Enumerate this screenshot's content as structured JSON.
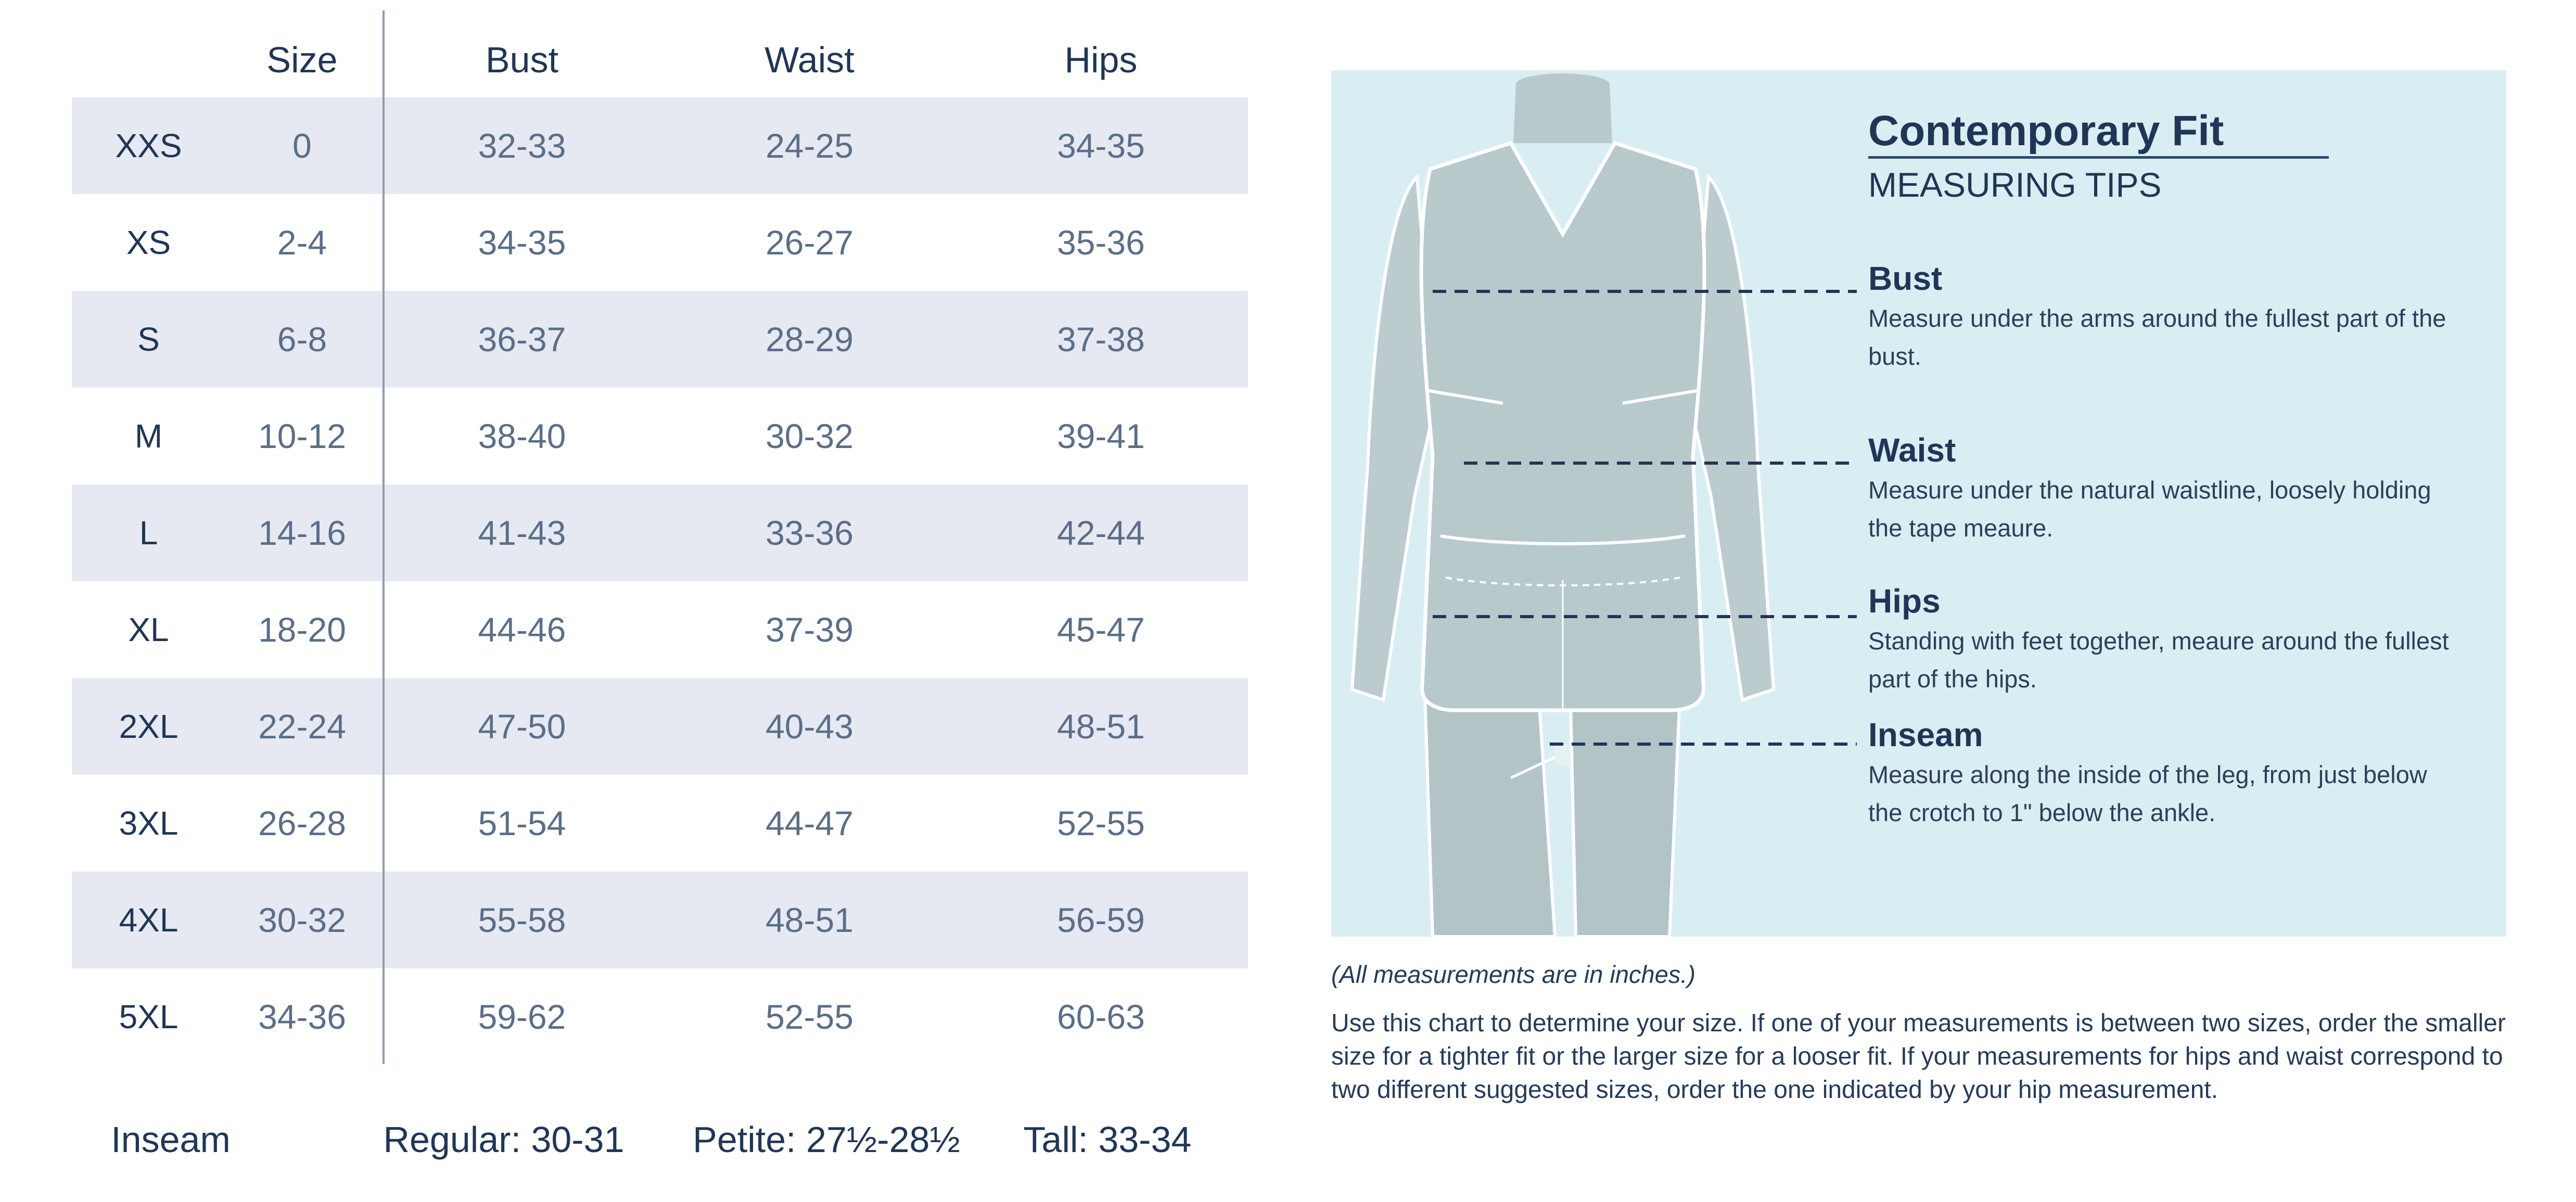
{
  "table": {
    "headers": {
      "size": "Size",
      "bust": "Bust",
      "waist": "Waist",
      "hips": "Hips"
    },
    "rows": [
      {
        "label": "XXS",
        "size": "0",
        "bust": "32-33",
        "waist": "24-25",
        "hips": "34-35"
      },
      {
        "label": "XS",
        "size": "2-4",
        "bust": "34-35",
        "waist": "26-27",
        "hips": "35-36"
      },
      {
        "label": "S",
        "size": "6-8",
        "bust": "36-37",
        "waist": "28-29",
        "hips": "37-38"
      },
      {
        "label": "M",
        "size": "10-12",
        "bust": "38-40",
        "waist": "30-32",
        "hips": "39-41"
      },
      {
        "label": "L",
        "size": "14-16",
        "bust": "41-43",
        "waist": "33-36",
        "hips": "42-44"
      },
      {
        "label": "XL",
        "size": "18-20",
        "bust": "44-46",
        "waist": "37-39",
        "hips": "45-47"
      },
      {
        "label": "2XL",
        "size": "22-24",
        "bust": "47-50",
        "waist": "40-43",
        "hips": "48-51"
      },
      {
        "label": "3XL",
        "size": "26-28",
        "bust": "51-54",
        "waist": "44-47",
        "hips": "52-55"
      },
      {
        "label": "4XL",
        "size": "30-32",
        "bust": "55-58",
        "waist": "48-51",
        "hips": "56-59"
      },
      {
        "label": "5XL",
        "size": "34-36",
        "bust": "59-62",
        "waist": "52-55",
        "hips": "60-63"
      }
    ],
    "inseam": {
      "label": "Inseam",
      "regular": "Regular: 30-31",
      "petite": "Petite: 27½-28½",
      "tall": "Tall: 33-34"
    }
  },
  "tips": {
    "title": "Contemporary Fit",
    "subtitle": "MEASURING TIPS",
    "items": [
      {
        "name": "Bust",
        "desc": "Measure under the arms around the fullest part of the bust."
      },
      {
        "name": "Waist",
        "desc": "Measure under the natural waistline, loosely holding the tape meaure."
      },
      {
        "name": "Hips",
        "desc": "Standing with feet together, meaure around the fullest part of the hips."
      },
      {
        "name": "Inseam",
        "desc": "Measure along the inside of the leg, from just below the crotch to 1\" below the ankle."
      }
    ]
  },
  "note": "(All measurements are in inches.)",
  "instructions": "Use this chart to determine your size. If one of your measurements is between two sizes, order the smaller size for a tighter fit or the larger size for a looser fit. If your measurements for hips and waist correspond to two different suggested sizes, order the one indicated by your hip measurement.",
  "colors": {
    "navy": "#1f3658",
    "row_shade": "#e6e9f1",
    "panel_bg": "#d9eef2",
    "figure": "#b8c9cc"
  }
}
